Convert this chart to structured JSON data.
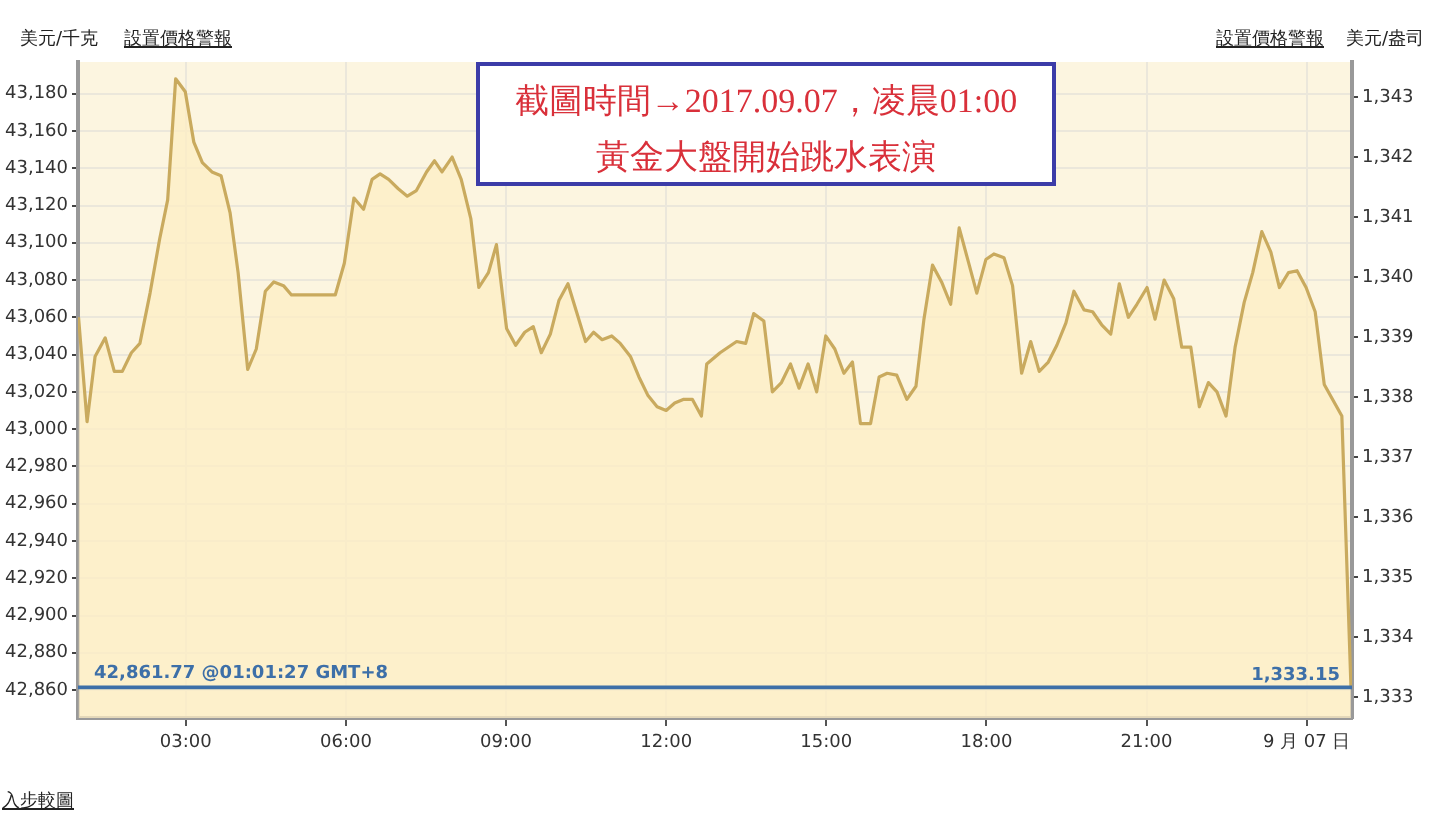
{
  "chart_data": {
    "type": "area",
    "ylabel": "美元/千克",
    "y2label": "美元/盎司",
    "annotations": [
      "截圖時間→2017.09.07，凌晨01:00",
      "黃金大盤開始跳水表演",
      "設置價格警報",
      "設置價格警報",
      "入步較圖"
    ],
    "x": [
      0.99,
      1.15,
      1.3,
      1.49,
      1.66,
      1.81,
      1.98,
      2.14,
      2.33,
      2.51,
      2.66,
      2.81,
      2.99,
      3.15,
      3.31,
      3.49,
      3.66,
      3.83,
      3.98,
      4.16,
      4.32,
      4.49,
      4.65,
      4.83,
      4.98,
      5.8,
      5.97,
      6.15,
      6.33,
      6.49,
      6.64,
      6.8,
      6.98,
      7.15,
      7.32,
      7.51,
      7.66,
      7.8,
      7.99,
      8.16,
      8.34,
      8.49,
      8.67,
      8.82,
      9.01,
      9.18,
      9.35,
      9.51,
      9.66,
      9.83,
      9.99,
      10.16,
      10.32,
      10.49,
      10.64,
      10.8,
      10.98,
      11.14,
      11.33,
      11.49,
      11.66,
      11.83,
      12.0,
      12.16,
      12.33,
      12.49,
      12.66,
      12.76,
      13.01,
      13.32,
      13.49,
      13.64,
      13.83,
      13.99,
      14.16,
      14.33,
      14.49,
      14.66,
      14.82,
      14.99,
      15.16,
      15.33,
      15.49,
      15.64,
      15.83,
      15.99,
      16.14,
      16.32,
      16.51,
      16.68,
      16.83,
      16.99,
      17.16,
      17.33,
      17.49,
      17.66,
      17.82,
      17.99,
      18.14,
      18.33,
      18.49,
      18.66,
      18.83,
      18.99,
      19.16,
      19.32,
      19.49,
      19.64,
      19.83,
      19.99,
      20.16,
      20.33,
      20.49,
      20.66,
      20.82,
      21.01,
      21.16,
      21.33,
      21.51,
      21.66,
      21.83,
      21.99,
      22.16,
      22.32,
      22.49,
      22.66,
      22.83,
      22.99,
      23.16,
      23.33,
      23.49,
      23.66,
      23.82,
      23.99,
      24.16,
      24.33,
      24.66,
      24.83
    ],
    "series": [
      {
        "color": "#c9aa5e",
        "values": [
          43060,
          43004,
          43039,
          43049,
          43031,
          43031,
          43041,
          43046,
          43073,
          43102,
          43123,
          43188,
          43181,
          43154,
          43143,
          43138,
          43136,
          43116,
          43084,
          43032,
          43043,
          43074,
          43079,
          43077,
          43072,
          43072,
          43089,
          43124,
          43118,
          43134,
          43137,
          43134,
          43129,
          43125,
          43128,
          43138,
          43144,
          43138,
          43146,
          43134,
          43113,
          43076,
          43084,
          43099,
          43054,
          43045,
          43052,
          43055,
          43041,
          43051,
          43069,
          43078,
          43063,
          43047,
          43052,
          43048,
          43050,
          43046,
          43039,
          43028,
          43018,
          43012,
          43010,
          43014,
          43016,
          43016,
          43007,
          43035,
          43041,
          43047,
          43046,
          43062,
          43058,
          43020,
          43025,
          43035,
          43022,
          43035,
          43020,
          43050,
          43043,
          43030,
          43036,
          43003,
          43003,
          43028,
          43030,
          43029,
          43016,
          43023,
          43059,
          43088,
          43079,
          43067,
          43108,
          43090,
          43073,
          43091,
          43094,
          43092,
          43077,
          43030,
          43047,
          43031,
          43036,
          43045,
          43057,
          43074,
          43064,
          43063,
          43056,
          43051,
          43078,
          43060,
          43067,
          43076,
          43059,
          43080,
          43070,
          43044,
          43044,
          43012,
          43025,
          43020,
          43007,
          43044,
          43068,
          43084,
          43106,
          43095,
          43076,
          43084,
          43085,
          43076,
          43063,
          43024,
          43007,
          42862
        ]
      }
    ],
    "xlim": [
      0.98,
      24.85
    ],
    "xticks": [
      {
        "value": 3,
        "label": "03:00"
      },
      {
        "value": 6,
        "label": "06:00"
      },
      {
        "value": 9,
        "label": "09:00"
      },
      {
        "value": 12,
        "label": "12:00"
      },
      {
        "value": 15,
        "label": "15:00"
      },
      {
        "value": 18,
        "label": "18:00"
      },
      {
        "value": 21,
        "label": "21:00"
      },
      {
        "value": 24,
        "label": "9 月 07 日"
      }
    ],
    "ylim": [
      42845,
      43197
    ],
    "yticks": [
      {
        "value": 42860,
        "label": "42,860"
      },
      {
        "value": 42880,
        "label": "42,880"
      },
      {
        "value": 42900,
        "label": "42,900"
      },
      {
        "value": 42920,
        "label": "42,920"
      },
      {
        "value": 42940,
        "label": "42,940"
      },
      {
        "value": 42960,
        "label": "42,960"
      },
      {
        "value": 42980,
        "label": "42,980"
      },
      {
        "value": 43000,
        "label": "43,000"
      },
      {
        "value": 43020,
        "label": "43,020"
      },
      {
        "value": 43040,
        "label": "43,040"
      },
      {
        "value": 43060,
        "label": "43,060"
      },
      {
        "value": 43080,
        "label": "43,080"
      },
      {
        "value": 43100,
        "label": "43,100"
      },
      {
        "value": 43120,
        "label": "43,120"
      },
      {
        "value": 43140,
        "label": "43,140"
      },
      {
        "value": 43160,
        "label": "43,160"
      },
      {
        "value": 43180,
        "label": "43,180"
      }
    ],
    "y2lim": [
      1332.65,
      1343.59
    ],
    "y2ticks": [
      {
        "value": 1333,
        "label": "1,333"
      },
      {
        "value": 1334,
        "label": "1,334"
      },
      {
        "value": 1335,
        "label": "1,335"
      },
      {
        "value": 1336,
        "label": "1,336"
      },
      {
        "value": 1337,
        "label": "1,337"
      },
      {
        "value": 1338,
        "label": "1,338"
      },
      {
        "value": 1339,
        "label": "1,339"
      },
      {
        "value": 1340,
        "label": "1,340"
      },
      {
        "value": 1341,
        "label": "1,341"
      },
      {
        "value": 1342,
        "label": "1,342"
      },
      {
        "value": 1343,
        "label": "1,343"
      }
    ],
    "ref_lines": [
      {
        "axis": "y",
        "value": 42861.77,
        "label": "42,861.77 @01:01:27 GMT+8",
        "color": "#3d6fa8"
      },
      {
        "axis": "y2",
        "value": 1333.15,
        "label": "1,333.15",
        "color": "#3d6fa8"
      }
    ],
    "grid": true,
    "legend": false,
    "marker": "none"
  }
}
